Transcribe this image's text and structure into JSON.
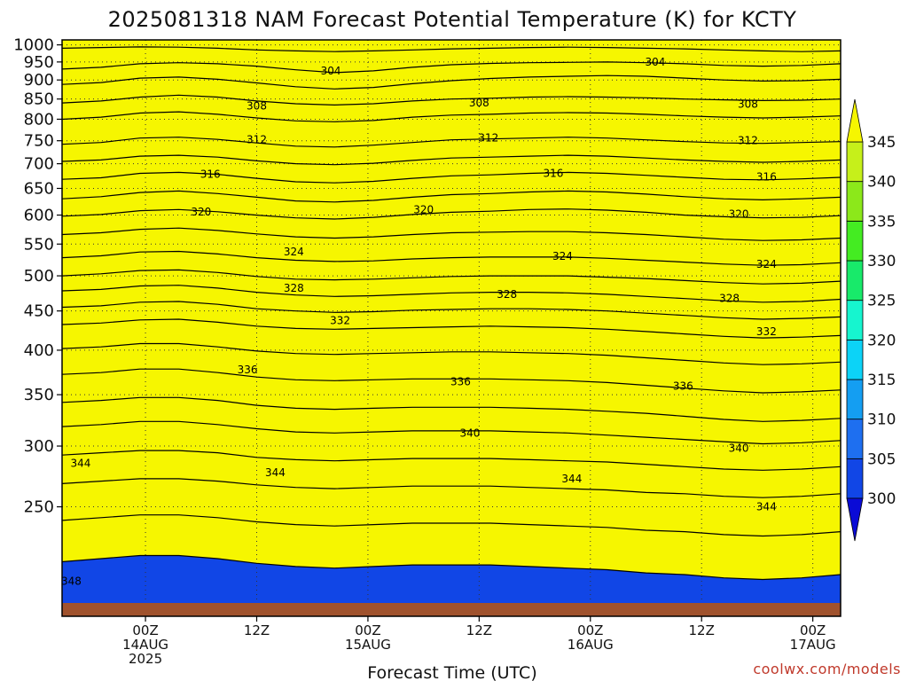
{
  "chart_data": {
    "type": "contour",
    "title": "2025081318 NAM Forecast Potential Temperature (K) for KCTY",
    "xlabel": "Forecast Time (UTC)",
    "ylabel": "",
    "credit": "coolwx.com/models",
    "y_axis": {
      "scale": "pressure",
      "range_hPa": [
        1015,
        180
      ],
      "ticks": [
        {
          "value": 250,
          "label": "250"
        },
        {
          "value": 300,
          "label": "300"
        },
        {
          "value": 350,
          "label": "350"
        },
        {
          "value": 400,
          "label": "400"
        },
        {
          "value": 450,
          "label": "450"
        },
        {
          "value": 500,
          "label": "500"
        },
        {
          "value": 550,
          "label": "550"
        },
        {
          "value": 600,
          "label": "600"
        },
        {
          "value": 650,
          "label": "650"
        },
        {
          "value": 700,
          "label": "700"
        },
        {
          "value": 750,
          "label": "750"
        },
        {
          "value": 800,
          "label": "800"
        },
        {
          "value": 850,
          "label": "850"
        },
        {
          "value": 900,
          "label": "900"
        },
        {
          "value": 950,
          "label": "950"
        },
        {
          "value": 1000,
          "label": "1000"
        }
      ]
    },
    "x_axis": {
      "range_hours": [
        -3,
        81
      ],
      "ticks": [
        {
          "hour": 6,
          "lines": [
            "00Z",
            "14AUG",
            "2025"
          ]
        },
        {
          "hour": 18,
          "lines": [
            "12Z"
          ]
        },
        {
          "hour": 30,
          "lines": [
            "00Z",
            "15AUG"
          ]
        },
        {
          "hour": 42,
          "lines": [
            "12Z"
          ]
        },
        {
          "hour": 54,
          "lines": [
            "00Z",
            "16AUG"
          ]
        },
        {
          "hour": 66,
          "lines": [
            "12Z"
          ]
        },
        {
          "hour": 78,
          "lines": [
            "00Z",
            "17AUG"
          ]
        }
      ]
    },
    "colorbar": {
      "levels": [
        "300",
        "305",
        "310",
        "315",
        "320",
        "325",
        "330",
        "335",
        "340",
        "345"
      ],
      "colors": [
        "#0a0bd6",
        "#1146e6",
        "#1e6ff0",
        "#149ef2",
        "#0cd3f7",
        "#16f5cf",
        "#18ea6a",
        "#44ec22",
        "#8ce81a",
        "#c6f01a",
        "#f6f600"
      ]
    },
    "contour_interval_K": 2,
    "contours": [
      {
        "theta": 302,
        "p": [
          990,
          992,
          994,
          993,
          990,
          985,
          982,
          980,
          982,
          985,
          988,
          990,
          992,
          993,
          992,
          990,
          988,
          985,
          982,
          980,
          982
        ]
      },
      {
        "theta": 304,
        "p": [
          930,
          935,
          945,
          948,
          945,
          938,
          928,
          920,
          925,
          935,
          942,
          946,
          948,
          949,
          950,
          948,
          945,
          940,
          938,
          940,
          945
        ]
      },
      {
        "theta": 306,
        "p": [
          888,
          893,
          905,
          908,
          902,
          892,
          882,
          876,
          880,
          890,
          898,
          904,
          908,
          910,
          912,
          910,
          905,
          900,
          897,
          898,
          902
        ]
      },
      {
        "theta": 308,
        "p": [
          840,
          845,
          855,
          860,
          855,
          845,
          838,
          835,
          838,
          845,
          850,
          852,
          855,
          856,
          855,
          853,
          850,
          848,
          846,
          847,
          850
        ]
      },
      {
        "theta": 310,
        "p": [
          800,
          805,
          815,
          818,
          812,
          803,
          796,
          794,
          797,
          805,
          810,
          812,
          815,
          816,
          815,
          812,
          808,
          805,
          803,
          805,
          808
        ]
      },
      {
        "theta": 312,
        "p": [
          742,
          746,
          756,
          758,
          753,
          745,
          738,
          736,
          740,
          746,
          752,
          754,
          756,
          758,
          756,
          752,
          748,
          745,
          744,
          746,
          748
        ]
      },
      {
        "theta": 314,
        "p": [
          705,
          708,
          716,
          718,
          714,
          706,
          700,
          698,
          701,
          707,
          712,
          714,
          716,
          718,
          716,
          712,
          708,
          705,
          703,
          705,
          708
        ]
      },
      {
        "theta": 316,
        "p": [
          668,
          671,
          680,
          682,
          678,
          670,
          663,
          661,
          664,
          670,
          675,
          677,
          680,
          682,
          680,
          676,
          672,
          668,
          667,
          669,
          672
        ]
      },
      {
        "theta": 318,
        "p": [
          630,
          634,
          642,
          645,
          640,
          633,
          626,
          624,
          627,
          633,
          638,
          640,
          643,
          645,
          643,
          639,
          634,
          630,
          628,
          630,
          633
        ]
      },
      {
        "theta": 320,
        "p": [
          598,
          601,
          608,
          610,
          606,
          600,
          595,
          593,
          596,
          601,
          605,
          607,
          610,
          611,
          609,
          605,
          600,
          597,
          595,
          596,
          599
        ]
      },
      {
        "theta": 322,
        "p": [
          566,
          569,
          575,
          577,
          573,
          567,
          562,
          560,
          562,
          566,
          569,
          570,
          571,
          571,
          569,
          566,
          562,
          558,
          556,
          557,
          560
        ]
      },
      {
        "theta": 324,
        "p": [
          528,
          531,
          537,
          538,
          534,
          528,
          524,
          522,
          523,
          526,
          528,
          529,
          529,
          529,
          527,
          524,
          521,
          518,
          516,
          517,
          520
        ]
      },
      {
        "theta": 326,
        "p": [
          500,
          503,
          508,
          509,
          505,
          499,
          495,
          494,
          495,
          497,
          499,
          500,
          500,
          500,
          498,
          496,
          493,
          490,
          488,
          489,
          492
        ]
      },
      {
        "theta": 328,
        "p": [
          478,
          480,
          485,
          486,
          482,
          476,
          472,
          470,
          471,
          473,
          475,
          476,
          476,
          475,
          473,
          470,
          467,
          464,
          462,
          463,
          466
        ]
      },
      {
        "theta": 330,
        "p": [
          455,
          457,
          462,
          463,
          459,
          453,
          450,
          448,
          449,
          451,
          452,
          453,
          453,
          452,
          450,
          447,
          444,
          441,
          439,
          440,
          442
        ]
      },
      {
        "theta": 332,
        "p": [
          432,
          434,
          438,
          439,
          435,
          430,
          427,
          426,
          427,
          428,
          429,
          430,
          429,
          428,
          426,
          423,
          420,
          417,
          415,
          416,
          418
        ]
      },
      {
        "theta": 334,
        "p": [
          402,
          404,
          408,
          408,
          404,
          399,
          396,
          395,
          396,
          397,
          398,
          398,
          397,
          396,
          394,
          391,
          388,
          385,
          383,
          384,
          386
        ]
      },
      {
        "theta": 336,
        "p": [
          372,
          374,
          378,
          378,
          374,
          369,
          366,
          365,
          366,
          367,
          367,
          367,
          366,
          365,
          363,
          360,
          357,
          354,
          352,
          353,
          355
        ]
      },
      {
        "theta": 338,
        "p": [
          342,
          344,
          347,
          347,
          344,
          339,
          336,
          335,
          336,
          337,
          337,
          337,
          336,
          335,
          333,
          331,
          328,
          325,
          323,
          324,
          326
        ]
      },
      {
        "theta": 340,
        "p": [
          318,
          320,
          323,
          323,
          320,
          316,
          313,
          312,
          313,
          314,
          314,
          314,
          313,
          312,
          310,
          308,
          306,
          304,
          302,
          303,
          305
        ]
      },
      {
        "theta": 342,
        "p": [
          292,
          294,
          296,
          296,
          294,
          290,
          288,
          287,
          288,
          289,
          289,
          289,
          288,
          287,
          286,
          284,
          282,
          280,
          279,
          280,
          282
        ]
      },
      {
        "theta": 344,
        "p": [
          268,
          270,
          272,
          272,
          270,
          267,
          265,
          264,
          265,
          266,
          266,
          266,
          265,
          264,
          263,
          261,
          260,
          258,
          257,
          258,
          260
        ]
      },
      {
        "theta": 346,
        "p": [
          240,
          242,
          244,
          244,
          242,
          239,
          237,
          236,
          237,
          238,
          238,
          238,
          237,
          236,
          235,
          233,
          232,
          230,
          229,
          230,
          232
        ]
      },
      {
        "theta": 348,
        "p": [
          212,
          214,
          216,
          216,
          214,
          211,
          209,
          208,
          209,
          210,
          210,
          210,
          209,
          208,
          207,
          205,
          204,
          202,
          201,
          202,
          204
        ]
      }
    ],
    "contour_labels": [
      {
        "text": "348",
        "hour": -2,
        "p": 200
      },
      {
        "text": "344",
        "hour": -1,
        "p": 285
      },
      {
        "text": "344",
        "hour": 20,
        "p": 277
      },
      {
        "text": "344",
        "hour": 52,
        "p": 272
      },
      {
        "text": "344",
        "hour": 73,
        "p": 250
      },
      {
        "text": "340",
        "hour": 41,
        "p": 312
      },
      {
        "text": "340",
        "hour": 70,
        "p": 298
      },
      {
        "text": "336",
        "hour": 17,
        "p": 377
      },
      {
        "text": "336",
        "hour": 40,
        "p": 364
      },
      {
        "text": "336",
        "hour": 64,
        "p": 359
      },
      {
        "text": "332",
        "hour": 27,
        "p": 437
      },
      {
        "text": "332",
        "hour": 73,
        "p": 423
      },
      {
        "text": "328",
        "hour": 22,
        "p": 482
      },
      {
        "text": "328",
        "hour": 45,
        "p": 473
      },
      {
        "text": "328",
        "hour": 69,
        "p": 467
      },
      {
        "text": "324",
        "hour": 22,
        "p": 537
      },
      {
        "text": "324",
        "hour": 51,
        "p": 530
      },
      {
        "text": "324",
        "hour": 73,
        "p": 518
      },
      {
        "text": "320",
        "hour": 12,
        "p": 606
      },
      {
        "text": "320",
        "hour": 36,
        "p": 610
      },
      {
        "text": "320",
        "hour": 70,
        "p": 602
      },
      {
        "text": "316",
        "hour": 13,
        "p": 678
      },
      {
        "text": "316",
        "hour": 50,
        "p": 680
      },
      {
        "text": "316",
        "hour": 73,
        "p": 673
      },
      {
        "text": "312",
        "hour": 18,
        "p": 752
      },
      {
        "text": "312",
        "hour": 43,
        "p": 756
      },
      {
        "text": "312",
        "hour": 71,
        "p": 750
      },
      {
        "text": "308",
        "hour": 18,
        "p": 833
      },
      {
        "text": "308",
        "hour": 42,
        "p": 840
      },
      {
        "text": "308",
        "hour": 71,
        "p": 837
      },
      {
        "text": "304",
        "hour": 26,
        "p": 925
      },
      {
        "text": "304",
        "hour": 61,
        "p": 950
      }
    ]
  }
}
